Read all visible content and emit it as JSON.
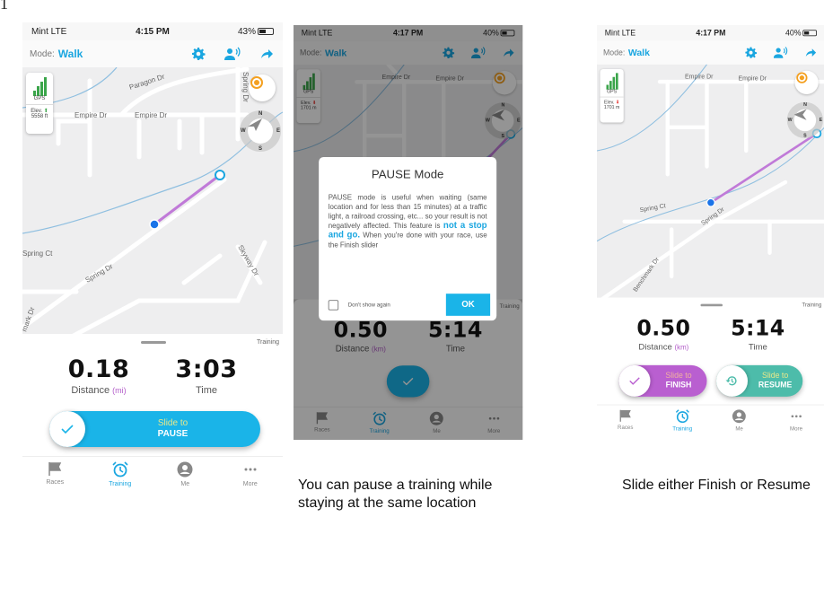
{
  "figure_number": "1",
  "phones": [
    {
      "status": {
        "carrier": "Mint  LTE",
        "time": "4:15 PM",
        "battery": "43%",
        "battery_level": 0.43
      },
      "header": {
        "mode_label": "Mode:",
        "mode_value": "Walk"
      },
      "map": {
        "labels": [
          "Paragon Dr",
          "Empire Dr",
          "Empire Dr",
          "Spring Dr",
          "Spring Ct",
          "Spring Dr",
          "Skyway Dr",
          "mark Dr"
        ],
        "gps_label": "GPS",
        "elev_label": "Elev.",
        "elev_value": "5558 ft",
        "compass": {
          "n": "N",
          "s": "S",
          "e": "E",
          "w": "W"
        }
      },
      "panel": {
        "tag": "Training",
        "distance": "0.18",
        "distance_label": "Distance",
        "distance_unit": "(mi)",
        "time": "3:03",
        "time_label": "Time",
        "slider": {
          "line1": "Slide to",
          "line2": "PAUSE"
        }
      },
      "tabs": [
        "Races",
        "Training",
        "Me",
        "More"
      ]
    },
    {
      "status": {
        "carrier": "Mint  LTE",
        "time": "4:17 PM",
        "battery": "40%",
        "battery_level": 0.4
      },
      "header": {
        "mode_label": "Mode:",
        "mode_value": "Walk"
      },
      "map": {
        "labels": [
          "Empire Dr",
          "Empire Dr"
        ],
        "gps_label": "GPS",
        "elev_label": "Elev.",
        "elev_value": "1701 m",
        "compass": {
          "n": "N",
          "s": "S",
          "e": "E",
          "w": "W"
        }
      },
      "panel": {
        "tag": "Training",
        "distance": "0.50",
        "distance_label": "Distance",
        "distance_unit": "(km)",
        "time": "5:14",
        "time_label": "Time"
      },
      "tabs": [
        "Races",
        "Training",
        "Me",
        "More"
      ],
      "dialog": {
        "title": "PAUSE Mode",
        "body_before": "PAUSE mode is useful when waiting (same location and for less than 15 minutes) at a traffic light, a railroad crossing, etc... so your result is not negatively affected. This feature is ",
        "body_highlight": "not a stop and go.",
        "body_after": " When you're done with your race, use the Finish slider",
        "checkbox_label": "Don't show again",
        "ok_label": "OK"
      }
    },
    {
      "status": {
        "carrier": "Mint  LTE",
        "time": "4:17 PM",
        "battery": "40%",
        "battery_level": 0.4
      },
      "header": {
        "mode_label": "Mode:",
        "mode_value": "Walk"
      },
      "map": {
        "labels": [
          "Empire Dr",
          "Empire Dr",
          "Spring Ct",
          "Spring Dr",
          "Benchmark Dr"
        ],
        "gps_label": "GPS",
        "elev_label": "Elev.",
        "elev_value": "1701 m",
        "compass": {
          "n": "N",
          "s": "S",
          "e": "E",
          "w": "W"
        }
      },
      "panel": {
        "tag": "Training",
        "distance": "0.50",
        "distance_label": "Distance",
        "distance_unit": "(km)",
        "time": "5:14",
        "time_label": "Time",
        "finish_slider": {
          "line1": "Slide to",
          "line2": "FINISH"
        },
        "resume_slider": {
          "line1": "Slide to",
          "line2": "RESUME"
        }
      },
      "tabs": [
        "Races",
        "Training",
        "Me",
        "More"
      ]
    }
  ],
  "captions": {
    "pause": "You can pause a training while staying at the same location",
    "finish_resume": "Slide either Finish or Resume"
  },
  "colors": {
    "accent": "#1aa6e0",
    "pause_slider": "#1ab4e8",
    "finish_slider": "#b95fd0",
    "resume_slider": "#4dbcaa",
    "route": "#c07ad8",
    "gps_bars": "#3aa54a"
  },
  "icons": {
    "header": [
      "gear-icon",
      "voice-coach-icon",
      "share-icon"
    ],
    "tabs": [
      "flag-icon",
      "alarm-clock-icon",
      "person-icon",
      "more-dots-icon"
    ]
  }
}
